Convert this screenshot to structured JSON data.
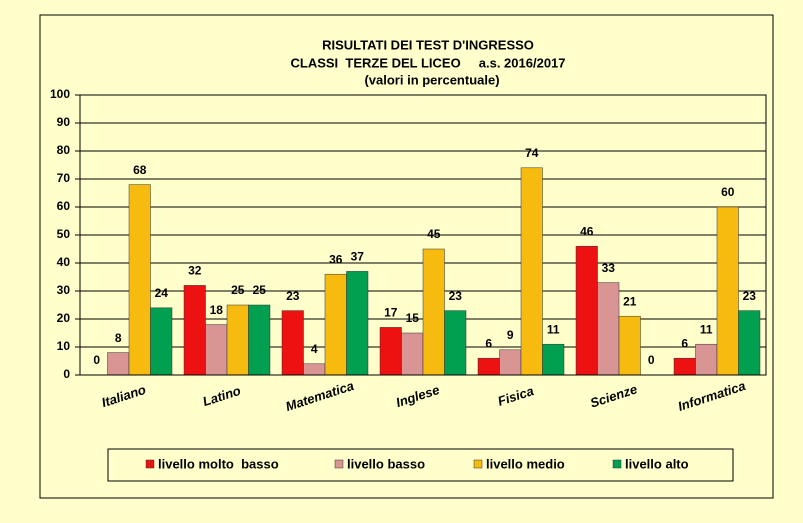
{
  "chart_data": {
    "type": "bar",
    "title": "RISULTATI DEI TEST D'INGRESSO",
    "subtitle": "CLASSI  TERZE DEL LICEO     a.s. 2016/2017",
    "note": "(valori in percentuale)",
    "categories": [
      "Italiano",
      "Latino",
      "Matematica",
      "Inglese",
      "Fisica",
      "Scienze",
      "Informatica"
    ],
    "series": [
      {
        "name": "livello molto  basso",
        "color": "#ee1111",
        "values": [
          0,
          32,
          23,
          17,
          6,
          46,
          6
        ]
      },
      {
        "name": "livello basso",
        "color": "#d99594",
        "values": [
          8,
          18,
          4,
          15,
          9,
          33,
          11
        ]
      },
      {
        "name": "livello medio",
        "color": "#f7bb0f",
        "values": [
          68,
          25,
          36,
          45,
          74,
          21,
          60
        ]
      },
      {
        "name": "livello alto",
        "color": "#00a050",
        "values": [
          24,
          25,
          37,
          23,
          11,
          0,
          23
        ]
      }
    ],
    "ylim": [
      0,
      100
    ],
    "yticks": [
      0,
      10,
      20,
      30,
      40,
      50,
      60,
      70,
      80,
      90,
      100
    ],
    "grid": true,
    "legend": "bottom"
  }
}
